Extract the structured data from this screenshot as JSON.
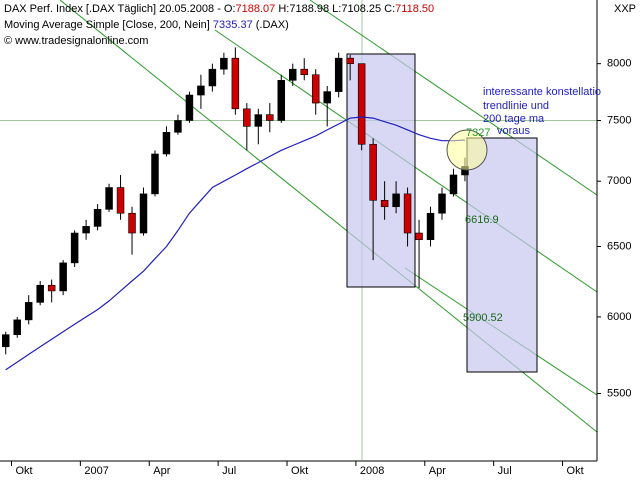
{
  "chart_data": {
    "type": "candlestick",
    "header": {
      "line1": [
        "DAX Perf. Index [.DAX  Täglich] 20.05.2008 - O:",
        "7188.07",
        " H:7188.98 L:7108.25 C:",
        "7118.50"
      ],
      "line2": [
        "Moving Average Simple [Close, 200, Nein] ",
        "7335.37",
        " (.DAX)"
      ],
      "line3": "© www.tradesignalonline.com"
    },
    "corner_label": "XXP",
    "categories": [
      null,
      "Okt",
      null,
      null,
      null,
      null,
      null,
      "2007",
      null,
      null,
      null,
      null,
      null,
      "Apr",
      null,
      null,
      null,
      null,
      null,
      "Jul",
      null,
      null,
      null,
      null,
      null,
      "Okt",
      null,
      null,
      null,
      null,
      null,
      "2008",
      null,
      null,
      null,
      null,
      null,
      "Apr",
      null,
      null,
      null,
      null,
      null,
      "Jul",
      null,
      null,
      null,
      null,
      null,
      "Okt",
      null,
      null
    ],
    "open": [
      5800,
      5880,
      5980,
      6100,
      6220,
      6180,
      6380,
      6600,
      6650,
      6780,
      6950,
      6750,
      6600,
      6900,
      7220,
      7400,
      7500,
      7720,
      7800,
      7950,
      8050,
      7600,
      7450,
      7550,
      7500,
      7850,
      7950,
      7900,
      7650,
      7750,
      8050,
      8000,
      7300,
      6850,
      6800,
      6900,
      6600,
      6550,
      6750,
      6900,
      7050,
      null,
      null,
      null,
      null,
      null,
      null,
      null,
      null,
      null,
      null,
      null
    ],
    "high": [
      5900,
      6000,
      6150,
      6250,
      6260,
      6400,
      6620,
      6700,
      6820,
      6980,
      7050,
      6800,
      6950,
      7250,
      7450,
      7550,
      7750,
      7900,
      8000,
      8100,
      8150,
      7650,
      7600,
      7650,
      7900,
      8000,
      8050,
      7950,
      7800,
      8100,
      8080,
      8000,
      7350,
      7000,
      7000,
      6950,
      6700,
      6800,
      6950,
      7100,
      7190,
      null,
      null,
      null,
      null,
      null,
      null,
      null,
      null,
      null,
      null,
      null
    ],
    "low": [
      5750,
      5860,
      5950,
      6080,
      6100,
      6150,
      6350,
      6550,
      6620,
      6760,
      6700,
      6440,
      6580,
      6880,
      7200,
      7380,
      7480,
      7600,
      7750,
      7900,
      7550,
      7250,
      7300,
      7400,
      7480,
      7800,
      7850,
      7550,
      7450,
      7700,
      7850,
      7250,
      6400,
      6700,
      6750,
      6500,
      6200,
      6500,
      6700,
      6880,
      7000,
      null,
      null,
      null,
      null,
      null,
      null,
      null,
      null,
      null,
      null,
      null
    ],
    "close": [
      5880,
      5980,
      6100,
      6220,
      6180,
      6380,
      6600,
      6650,
      6780,
      6950,
      6750,
      6600,
      6900,
      7220,
      7400,
      7500,
      7720,
      7800,
      7950,
      8050,
      7600,
      7450,
      7550,
      7500,
      7850,
      7950,
      7900,
      7650,
      7750,
      8050,
      8000,
      7300,
      6850,
      6800,
      6900,
      6600,
      6550,
      6750,
      6900,
      7050,
      7118.5,
      null,
      null,
      null,
      null,
      null,
      null,
      null,
      null,
      null,
      null,
      null
    ],
    "up_color": "#000000",
    "down_color": "#cc0000",
    "series": [
      {
        "name": "Moving Average Simple",
        "color": "#2020c0",
        "values": [
          5650,
          5700,
          5750,
          5800,
          5850,
          5900,
          5950,
          6000,
          6050,
          6110,
          6180,
          6250,
          6320,
          6410,
          6500,
          6620,
          6750,
          6850,
          6950,
          7000,
          7050,
          7100,
          7150,
          7200,
          7250,
          7290,
          7330,
          7370,
          7420,
          7470,
          7520,
          7530,
          7520,
          7490,
          7460,
          7420,
          7380,
          7350,
          7330,
          7330,
          7335.37,
          null,
          null,
          null,
          null,
          null,
          null,
          null,
          null,
          null,
          null,
          null
        ]
      }
    ],
    "ylim": [
      5100,
      8600
    ],
    "yticks": [
      5500,
      6000,
      6500,
      7000,
      7500,
      8000
    ],
    "log_scale": true,
    "annotations": [
      "interessante konstellatio",
      "trendlinie und",
      "200 tage ma",
      "voraus",
      "7327",
      "6616.9",
      "5900.52"
    ]
  }
}
